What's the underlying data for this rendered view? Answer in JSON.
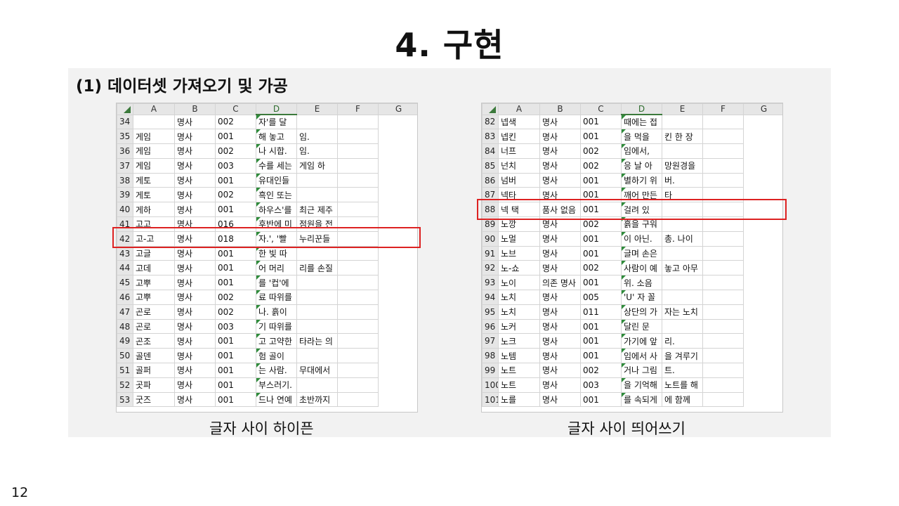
{
  "slide": {
    "title": "4. 구현",
    "subtitle": "(1) 데이터셋 가져오기 및 가공",
    "page_number": "12"
  },
  "left_sheet": {
    "caption": "글자 사이 하이픈",
    "columns": [
      "A",
      "B",
      "C",
      "D",
      "E",
      "F",
      "G"
    ],
    "rows": [
      [
        "34",
        "",
        "명사",
        "002",
        "자'를 달",
        "",
        ""
      ],
      [
        "35",
        "게임",
        "명사",
        "001",
        "해 놓고",
        "임.",
        ""
      ],
      [
        "36",
        "게임",
        "명사",
        "002",
        "나 시합.",
        "임.",
        ""
      ],
      [
        "37",
        "게임",
        "명사",
        "003",
        "수를 세는",
        "게임 하",
        ""
      ],
      [
        "38",
        "게토",
        "명사",
        "001",
        "유대인들",
        "",
        ""
      ],
      [
        "39",
        "게토",
        "명사",
        "002",
        "흑인 또는",
        "",
        ""
      ],
      [
        "40",
        "게하",
        "명사",
        "001",
        "하우스'를",
        "최근 제주",
        ""
      ],
      [
        "41",
        "고고",
        "명사",
        "016",
        "후반에 미",
        "점원을 전",
        ""
      ],
      [
        "42",
        "고-고",
        "명사",
        "018",
        "자.', '빨",
        "누리꾼들",
        ""
      ],
      [
        "43",
        "고글",
        "명사",
        "001",
        "한 빛 따",
        "",
        ""
      ],
      [
        "44",
        "고데",
        "명사",
        "001",
        "어 머리",
        "리를 손질",
        ""
      ],
      [
        "45",
        "고뿌",
        "명사",
        "001",
        "를 '컵'에",
        "",
        ""
      ],
      [
        "46",
        "고뿌",
        "명사",
        "002",
        "료 따위를",
        "",
        ""
      ],
      [
        "47",
        "곤로",
        "명사",
        "002",
        "나. 흙이",
        "",
        ""
      ],
      [
        "48",
        "곤로",
        "명사",
        "003",
        "기 따위를",
        "",
        ""
      ],
      [
        "49",
        "곤조",
        "명사",
        "001",
        "고 고약한",
        "타라는 의",
        ""
      ],
      [
        "50",
        "골덴",
        "명사",
        "001",
        "험 골이",
        "",
        ""
      ],
      [
        "51",
        "골퍼",
        "명사",
        "001",
        "는 사람.",
        "무대에서",
        ""
      ],
      [
        "52",
        "곳파",
        "명사",
        "001",
        "부스러기.",
        "",
        ""
      ],
      [
        "53",
        "굿즈",
        "명사",
        "001",
        "드나 연예",
        "초반까지",
        ""
      ]
    ]
  },
  "right_sheet": {
    "caption": "글자 사이 띄어쓰기",
    "columns": [
      "A",
      "B",
      "C",
      "D",
      "E",
      "F",
      "G"
    ],
    "rows": [
      [
        "82",
        "넵색",
        "명사",
        "001",
        "때에는 접",
        "",
        ""
      ],
      [
        "83",
        "넵킨",
        "명사",
        "001",
        "을 먹을",
        "킨 한 장",
        ""
      ],
      [
        "84",
        "너프",
        "명사",
        "002",
        "임에서,",
        "",
        ""
      ],
      [
        "85",
        "넌치",
        "명사",
        "002",
        "응 날 아",
        "망원경을",
        ""
      ],
      [
        "86",
        "넘버",
        "명사",
        "001",
        "별하기 위",
        "버.",
        ""
      ],
      [
        "87",
        "넥타",
        "명사",
        "001",
        "깨어 만든",
        "타",
        ""
      ],
      [
        "88",
        "넥 택",
        "품사 없음",
        "001",
        "걸려 있",
        "",
        ""
      ],
      [
        "89",
        "노깡",
        "명사",
        "002",
        "흙을 구워",
        "",
        ""
      ],
      [
        "90",
        "노멀",
        "명사",
        "001",
        "이 아닌.",
        "총. 나이",
        ""
      ],
      [
        "91",
        "노브",
        "명사",
        "001",
        "글며 손은",
        "",
        ""
      ],
      [
        "92",
        "노-쇼",
        "명사",
        "002",
        "사람이 예",
        "놓고 아무",
        ""
      ],
      [
        "93",
        "노이",
        "의존 명사",
        "001",
        "위. 소음",
        "",
        ""
      ],
      [
        "94",
        "노치",
        "명사",
        "005",
        "'U' 자 꼴",
        "",
        ""
      ],
      [
        "95",
        "노치",
        "명사",
        "011",
        "상단의 가",
        "자는 노치",
        ""
      ],
      [
        "96",
        "노커",
        "명사",
        "001",
        "달린 문",
        "",
        ""
      ],
      [
        "97",
        "노크",
        "명사",
        "001",
        "가기에 앞",
        "리.",
        ""
      ],
      [
        "98",
        "노템",
        "명사",
        "001",
        "임에서 사",
        "을 겨루기",
        ""
      ],
      [
        "99",
        "노트",
        "명사",
        "002",
        "거나 그림",
        "트.",
        ""
      ],
      [
        "100",
        "노트",
        "명사",
        "003",
        "을 기억해",
        "노트를 해",
        ""
      ],
      [
        "101",
        "노를",
        "명사",
        "001",
        "를 속되게",
        "에 함께",
        ""
      ]
    ]
  }
}
